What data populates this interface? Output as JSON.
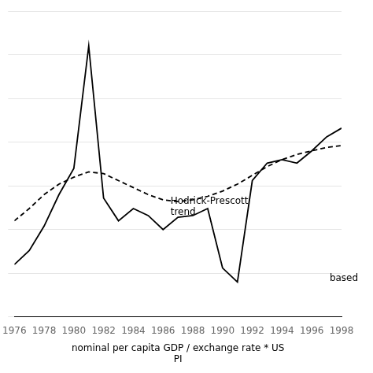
{
  "chart_data": {
    "type": "line",
    "x": [
      1976,
      1977,
      1978,
      1979,
      1980,
      1981,
      1982,
      1983,
      1984,
      1985,
      1986,
      1987,
      1988,
      1989,
      1990,
      1991,
      1992,
      1993,
      1994,
      1995,
      1996,
      1997,
      1998
    ],
    "series": [
      {
        "color": "#000000",
        "line_style": "solid",
        "values": [
          30,
          38,
          52,
          70,
          85,
          155,
          68,
          55,
          62,
          58,
          50,
          57,
          58,
          62,
          28,
          20,
          78,
          88,
          90,
          88,
          95,
          103,
          108
        ]
      },
      {
        "color": "#000000",
        "line_style": "dashed",
        "values": [
          55,
          62,
          70,
          76,
          80,
          83,
          82,
          78,
          74,
          70,
          67,
          66,
          67,
          69,
          72,
          76,
          81,
          86,
          90,
          93,
          95,
          97,
          98
        ]
      }
    ],
    "xlabel": "nominal per capita GDP / exchange rate * US\nPI",
    "annotations": [
      {
        "text": "Hodrick-Prescott\ntrend",
        "x": 1986.5,
        "y": 63
      },
      {
        "text": "based",
        "x": 1997.2,
        "y": 22
      }
    ],
    "xlim": [
      1976,
      1998
    ],
    "xticks": [
      1976,
      1978,
      1980,
      1982,
      1984,
      1986,
      1988,
      1990,
      1992,
      1994,
      1996,
      1998
    ],
    "ylim": [
      0,
      175
    ],
    "yticks": [
      0,
      25,
      50,
      75,
      100,
      125,
      150,
      175
    ],
    "grid": "y",
    "tick_labels": "x"
  }
}
